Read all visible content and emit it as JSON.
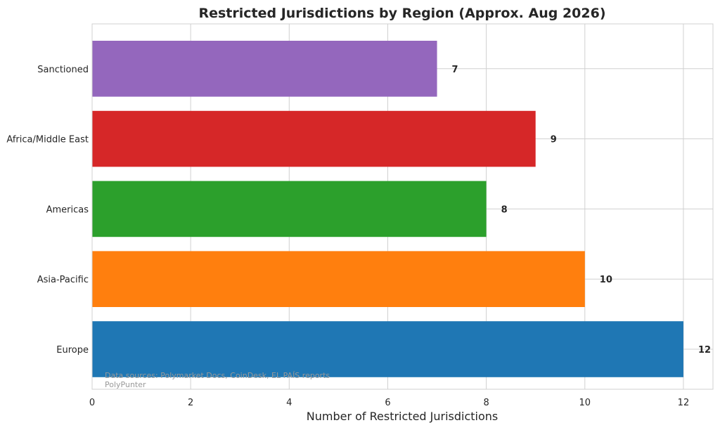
{
  "chart_data": {
    "type": "bar",
    "orientation": "horizontal",
    "title": "Restricted Jurisdictions by Region (Approx. Aug 2026)",
    "xlabel": "Number of Restricted Jurisdictions",
    "ylabel": "",
    "categories": [
      "Europe",
      "Asia-Pacific",
      "Americas",
      "Africa/Middle East",
      "Sanctioned"
    ],
    "values": [
      12,
      10,
      8,
      9,
      7
    ],
    "value_labels": [
      "12",
      "10",
      "8",
      "9",
      "7"
    ],
    "colors": [
      "#1f77b4",
      "#ff7f0e",
      "#2ca02c",
      "#d62728",
      "#9467bd"
    ],
    "xlim": [
      0,
      12.6
    ],
    "xticks": [
      0,
      2,
      4,
      6,
      8,
      10,
      12
    ],
    "xtick_labels": [
      "0",
      "2",
      "4",
      "6",
      "8",
      "10",
      "12"
    ],
    "grid": true,
    "source_lines": [
      "Data sources: Polymarket Docs, CoinDesk, EL PAÍS reports",
      "PolyPunter"
    ]
  }
}
